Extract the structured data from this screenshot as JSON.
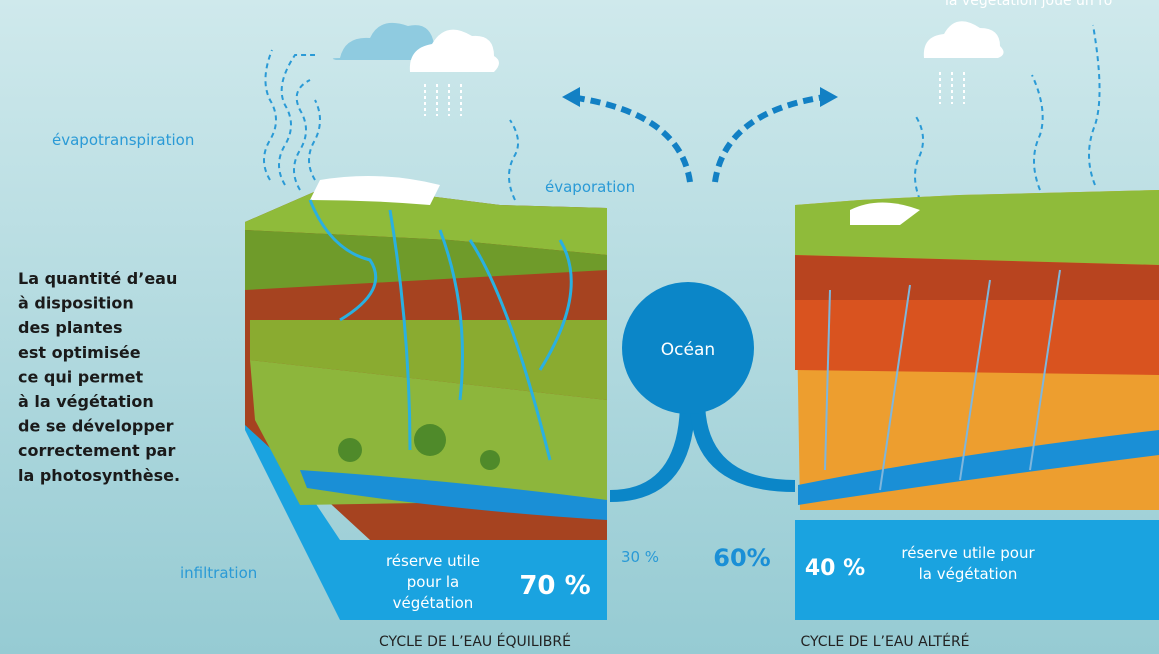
{
  "top_right_caption": "la végétation joue un rô",
  "labels": {
    "evapotranspiration": "évapotranspiration",
    "evaporation": "évaporation",
    "ocean": "Océan",
    "infiltration": "infiltration"
  },
  "description": [
    "La quantité d’eau",
    "à disposition",
    "des plantes",
    "est optimisée",
    "ce qui permet",
    "à la végétation",
    "de se développer",
    "correctement par",
    "la photosynthèse."
  ],
  "balanced": {
    "reserve_lines": [
      "réserve utile",
      "pour la",
      "végétation"
    ],
    "reserve_percent": "70 %",
    "runoff_percent": "30 %",
    "caption": "CYCLE DE L’EAU ÉQUILIBRÉ"
  },
  "altered": {
    "runoff_percent": "60%",
    "reserve_percent": "40 %",
    "reserve_lines": [
      "réserve utile pour",
      "la végétation"
    ],
    "caption": "CYCLE DE L’EAU ALTÉRÉ"
  }
}
